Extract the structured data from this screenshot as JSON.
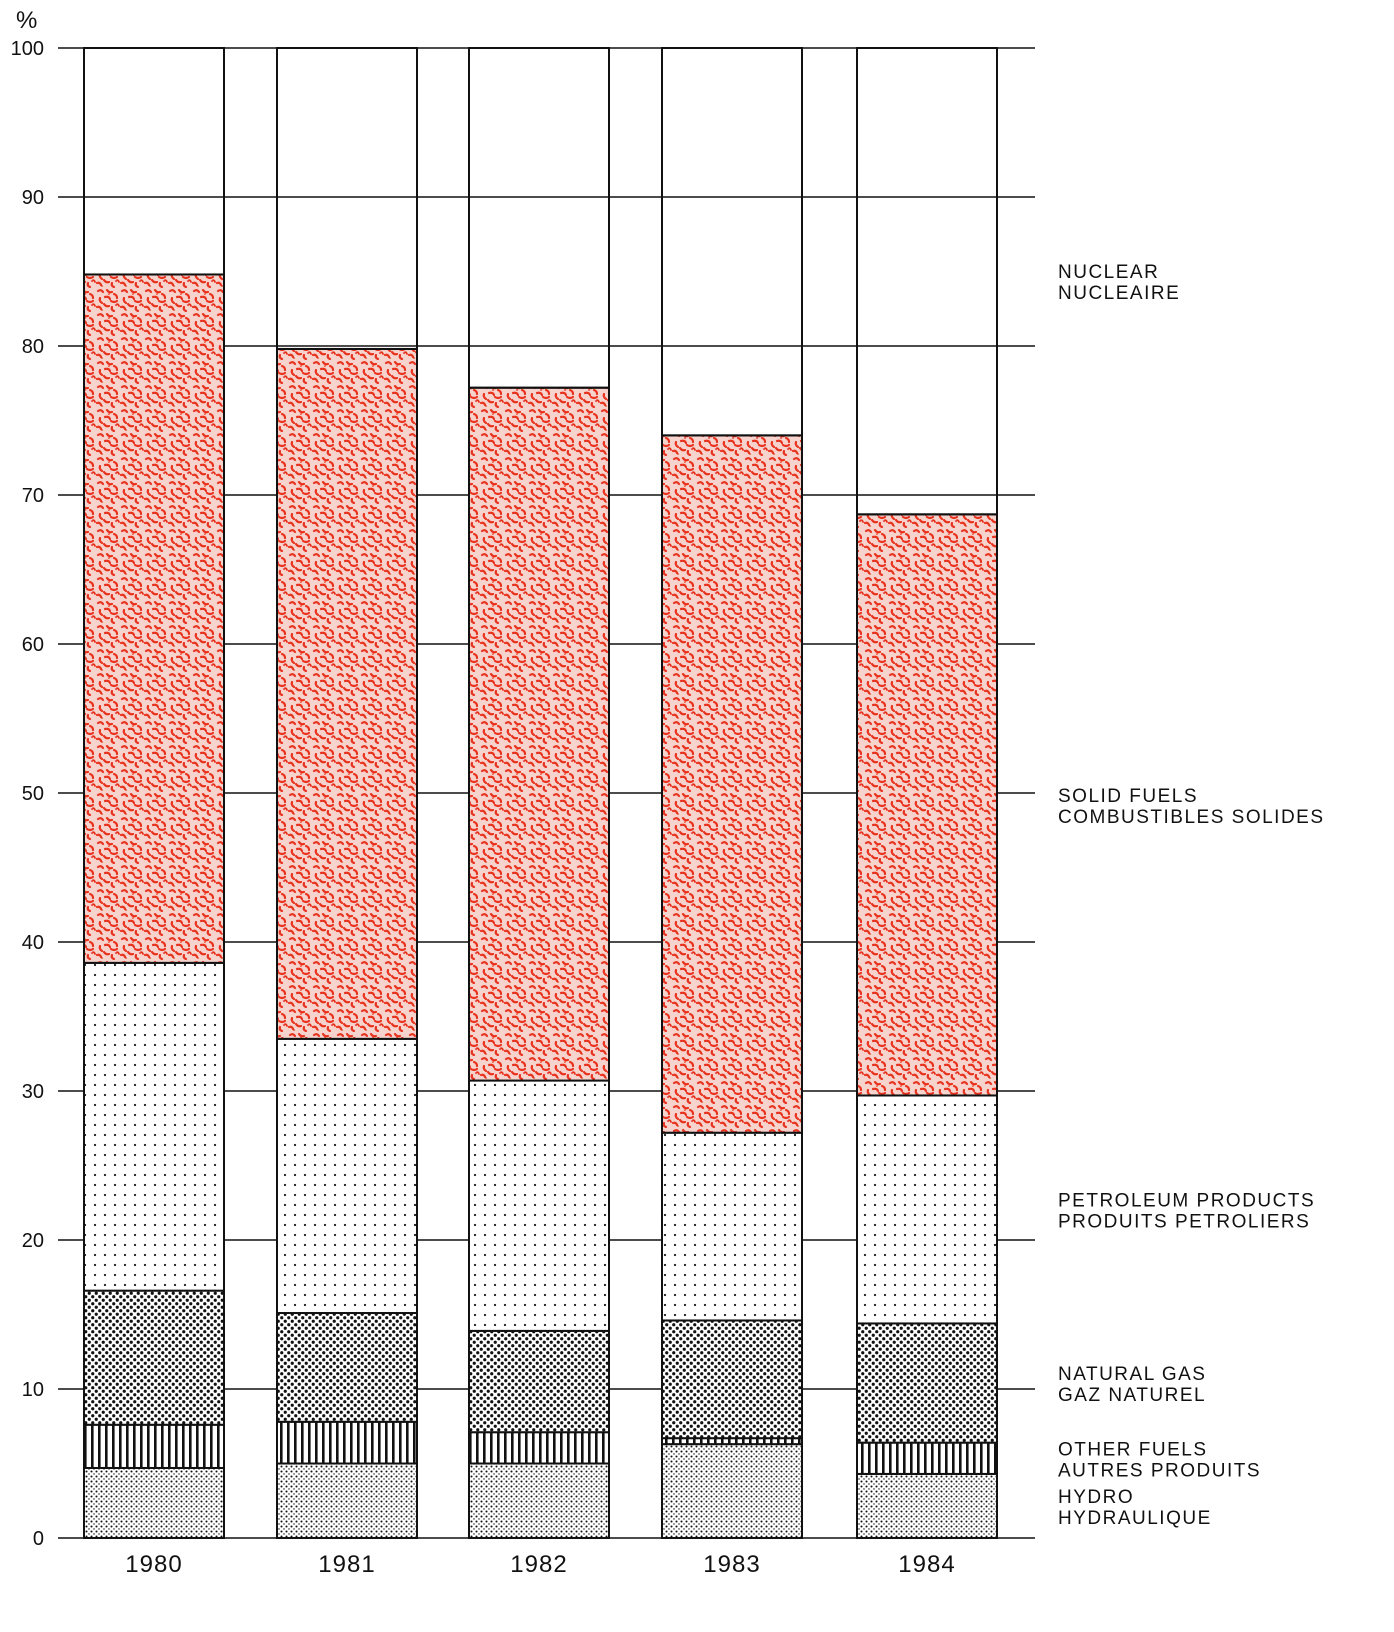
{
  "chart_data": {
    "type": "bar",
    "stacked": true,
    "title": "",
    "xlabel": "",
    "ylabel": "%",
    "ylim": [
      0,
      100
    ],
    "yticks": [
      0,
      10,
      20,
      30,
      40,
      50,
      60,
      70,
      80,
      90,
      100
    ],
    "grid": false,
    "legend_placement": "right",
    "categories": [
      "1980",
      "1981",
      "1982",
      "1983",
      "1984"
    ],
    "series": [
      {
        "name": "HYDRO",
        "name_fr": "HYDRAULIQUE",
        "pattern": "fine-dots",
        "color": "#111111",
        "values": [
          4.7,
          5.0,
          5.0,
          6.3,
          4.3
        ]
      },
      {
        "name": "OTHER FUELS",
        "name_fr": "AUTRES PRODUITS",
        "pattern": "vertical-lines",
        "color": "#111111",
        "values": [
          2.9,
          2.8,
          2.1,
          0.4,
          2.1
        ]
      },
      {
        "name": "NATURAL GAS",
        "name_fr": "GAZ NATUREL",
        "pattern": "dense-dots",
        "color": "#111111",
        "values": [
          9.0,
          7.3,
          6.8,
          7.9,
          8.0
        ]
      },
      {
        "name": "PETROLEUM PRODUCTS",
        "name_fr": "PRODUITS PETROLIERS",
        "pattern": "sparse-dots",
        "color": "#111111",
        "values": [
          22.0,
          18.4,
          16.8,
          12.6,
          15.3
        ]
      },
      {
        "name": "SOLID FUELS",
        "name_fr": "COMBUSTIBLES SOLIDES",
        "pattern": "red-speckle",
        "color": "#e8331f",
        "values": [
          46.2,
          46.3,
          46.5,
          46.8,
          39.0
        ]
      },
      {
        "name": "NUCLEAR",
        "name_fr": "NUCLEAIRE",
        "pattern": "solid-red",
        "color": "#f0381f",
        "values": [
          15.2,
          20.2,
          22.8,
          26.0,
          31.3
        ]
      }
    ]
  }
}
